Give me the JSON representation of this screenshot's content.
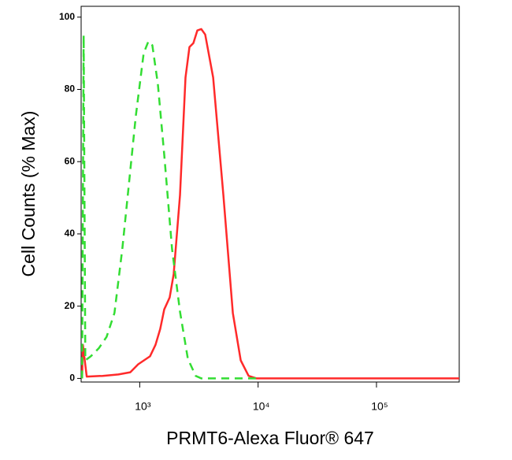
{
  "chart_data": {
    "type": "line",
    "xlabel": "PRMT6-Alexa Fluor® 647",
    "ylabel": "Cell Counts (% Max)",
    "xscale": "log",
    "xlim": [
      320,
      500000
    ],
    "ylim": [
      -1,
      103
    ],
    "xticks": [
      {
        "value": 1000,
        "label": "10³"
      },
      {
        "value": 10000,
        "label": "10⁴"
      },
      {
        "value": 100000,
        "label": "10⁵"
      }
    ],
    "yticks": [
      0,
      20,
      40,
      60,
      80,
      100
    ],
    "series": [
      {
        "color": "#ff2a2a",
        "linestyle": "solid",
        "x": [
          326,
          331,
          357,
          486,
          661,
          832,
          970,
          1221,
          1359,
          1490,
          1610,
          1791,
          1936,
          2188,
          2436,
          2630,
          2840,
          3066,
          3311,
          3575,
          4169,
          5090,
          6119,
          7132,
          8318,
          9700,
          12200,
          500000
        ],
        "values": [
          0,
          9.3,
          0.5,
          0.7,
          1.1,
          1.7,
          3.9,
          6.1,
          9.3,
          13.7,
          19.1,
          22.4,
          28.9,
          50.7,
          83.3,
          91.7,
          92.8,
          96.3,
          96.7,
          95.2,
          83.3,
          50.7,
          18.1,
          5.0,
          0.7,
          0,
          0,
          0
        ]
      },
      {
        "color": "#33dd33",
        "linestyle": "dashed",
        "x": [
          326,
          336,
          347,
          386,
          450,
          525,
          612,
          713,
          794,
          926,
          1080,
          1184,
          1279,
          1423,
          1610,
          1876,
          2188,
          2551,
          2974,
          3311,
          10000
        ],
        "values": [
          0,
          95,
          5,
          6.1,
          8.3,
          11.5,
          18.1,
          35.9,
          50.9,
          72.6,
          90,
          93.3,
          92.2,
          81.5,
          61.9,
          35.9,
          18.5,
          5.4,
          0.7,
          0,
          0
        ]
      }
    ]
  }
}
